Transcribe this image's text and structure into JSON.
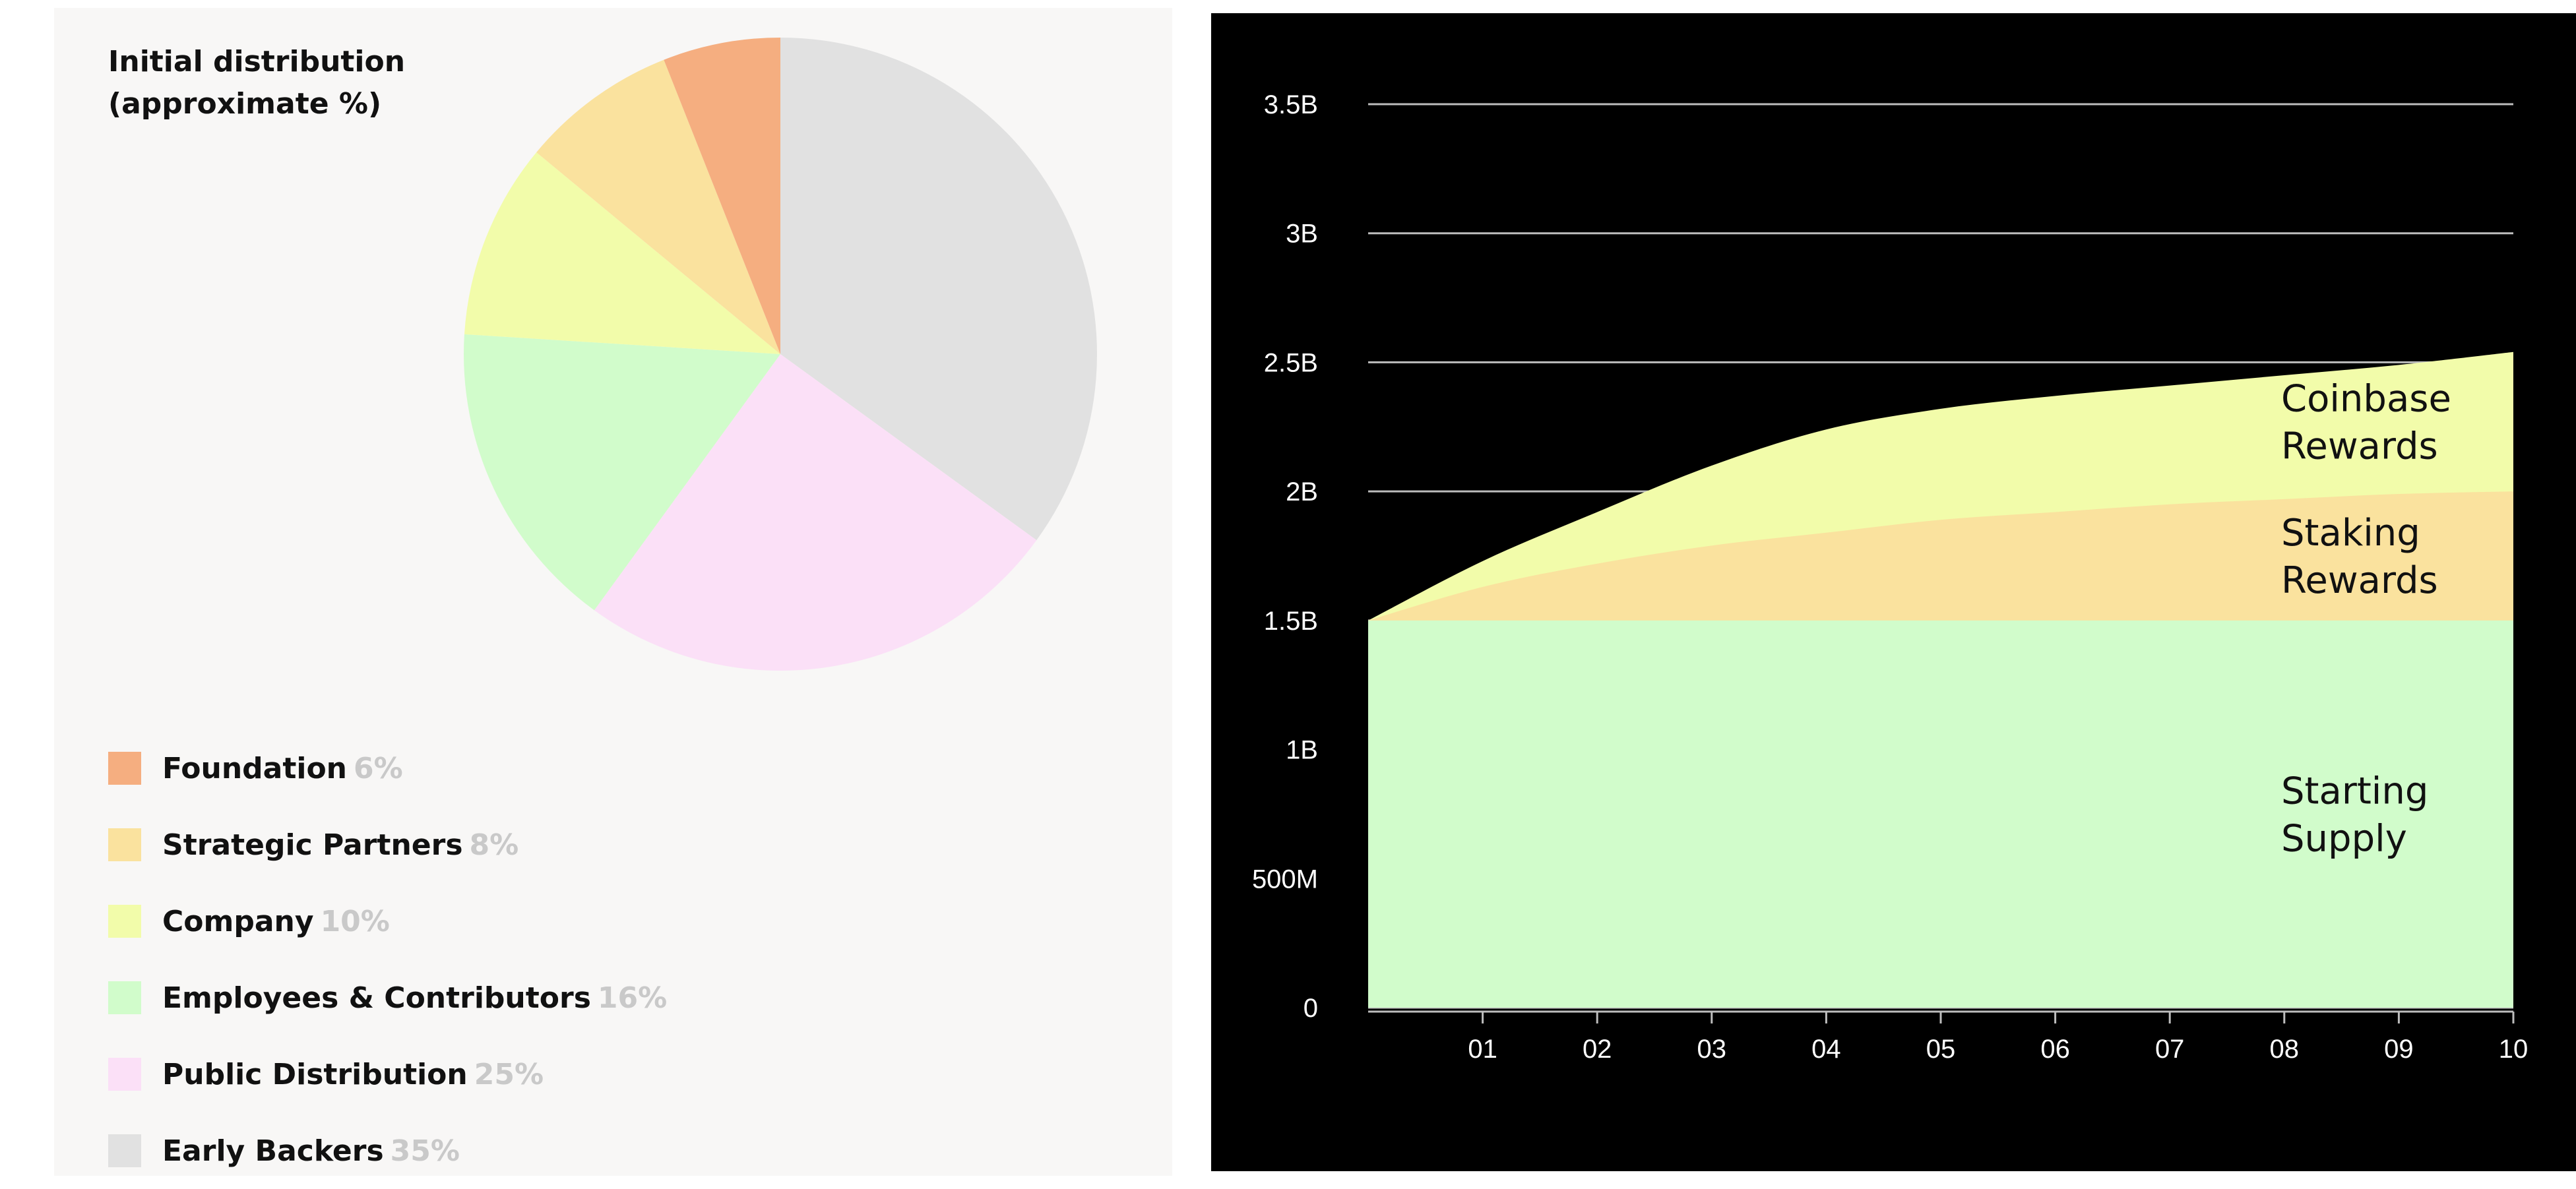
{
  "chart_data": [
    {
      "type": "pie",
      "title": "Initial distribution\n(approximate %)",
      "slices": [
        {
          "label": "Foundation",
          "value": 6,
          "value_text": "6%",
          "color": "#f5ae80"
        },
        {
          "label": "Strategic Partners",
          "value": 8,
          "value_text": "8%",
          "color": "#fae29e"
        },
        {
          "label": "Company",
          "value": 10,
          "value_text": "10%",
          "color": "#f2fcaa"
        },
        {
          "label": "Employees & Contributors",
          "value": 16,
          "value_text": "16%",
          "color": "#d1fccb"
        },
        {
          "label": "Public Distribution",
          "value": 25,
          "value_text": "25%",
          "color": "#fbe0f7"
        },
        {
          "label": "Early Backers",
          "value": 35,
          "value_text": "35%",
          "color": "#e1e1e1"
        }
      ],
      "start_angle": "12 o'clock, clockwise from Early Backers"
    },
    {
      "type": "area",
      "stacked": true,
      "background": "#000000",
      "x": [
        0,
        1,
        2,
        3,
        4,
        5,
        6,
        7,
        8,
        9,
        10
      ],
      "x_tick_labels": [
        "01",
        "02",
        "03",
        "04",
        "05",
        "06",
        "07",
        "08",
        "09",
        "10"
      ],
      "y_tick_values": [
        0,
        500000000,
        1000000000,
        1500000000,
        2000000000,
        2500000000,
        3000000000,
        3500000000
      ],
      "y_tick_labels": [
        "0",
        "500M",
        "1B",
        "1.5B",
        "2B",
        "2.5B",
        "3B",
        "3.5B"
      ],
      "ylim": [
        0,
        3500000000
      ],
      "grid": "horizontal",
      "series": [
        {
          "name": "Starting\nSupply",
          "color": "#d1fccb",
          "values": [
            1500000000,
            1500000000,
            1500000000,
            1500000000,
            1500000000,
            1500000000,
            1500000000,
            1500000000,
            1500000000,
            1500000000,
            1500000000
          ]
        },
        {
          "name": "Staking\nRewards",
          "color": "#fae29e",
          "values": [
            0,
            130000000,
            220000000,
            290000000,
            340000000,
            390000000,
            420000000,
            450000000,
            470000000,
            490000000,
            500000000
          ]
        },
        {
          "name": "Coinbase\nRewards",
          "color": "#f2fcaa",
          "values": [
            0,
            100000000,
            200000000,
            310000000,
            400000000,
            430000000,
            450000000,
            460000000,
            480000000,
            500000000,
            540000000
          ]
        }
      ]
    }
  ]
}
